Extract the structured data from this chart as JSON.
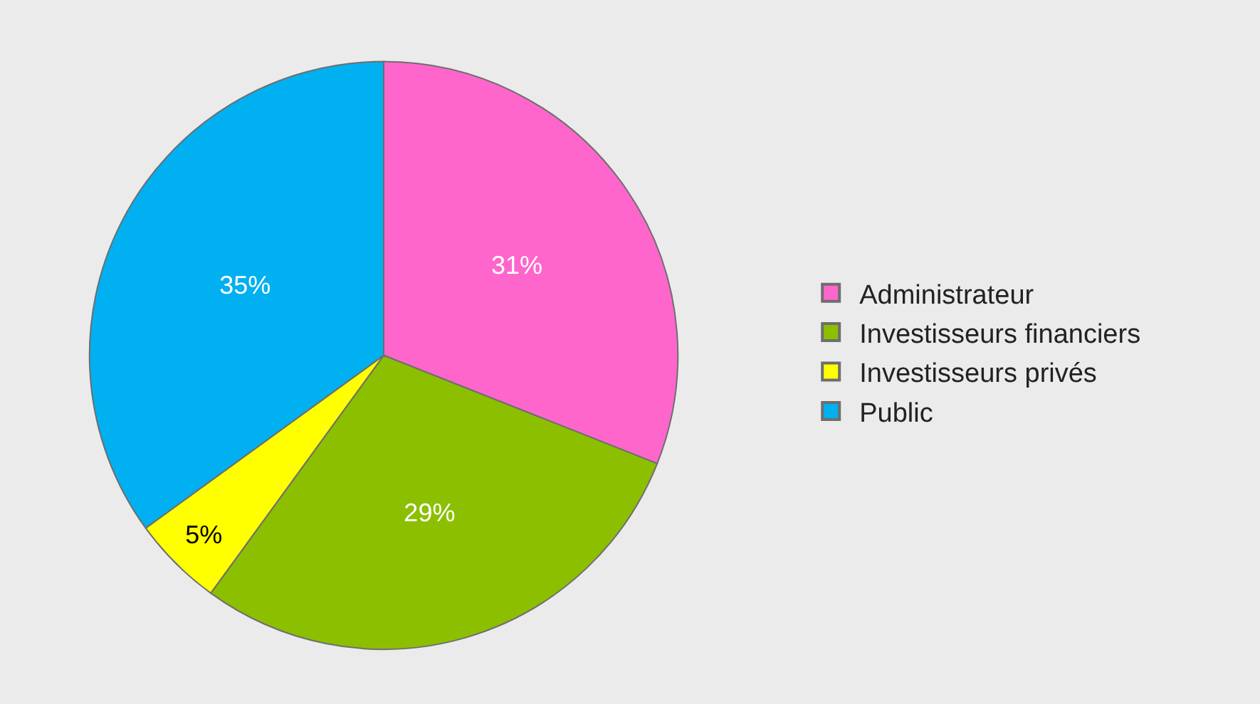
{
  "chart_data": {
    "type": "pie",
    "categories": [
      "Administrateur",
      "Investisseurs financiers",
      "Investisseurs privés",
      "Public"
    ],
    "values": [
      31,
      29,
      5,
      35
    ],
    "colors": [
      "#ff66cc",
      "#8cbf00",
      "#ffff00",
      "#00b0f0"
    ],
    "value_labels": [
      "31%",
      "29%",
      "5%",
      "35%"
    ],
    "legend": "right"
  }
}
